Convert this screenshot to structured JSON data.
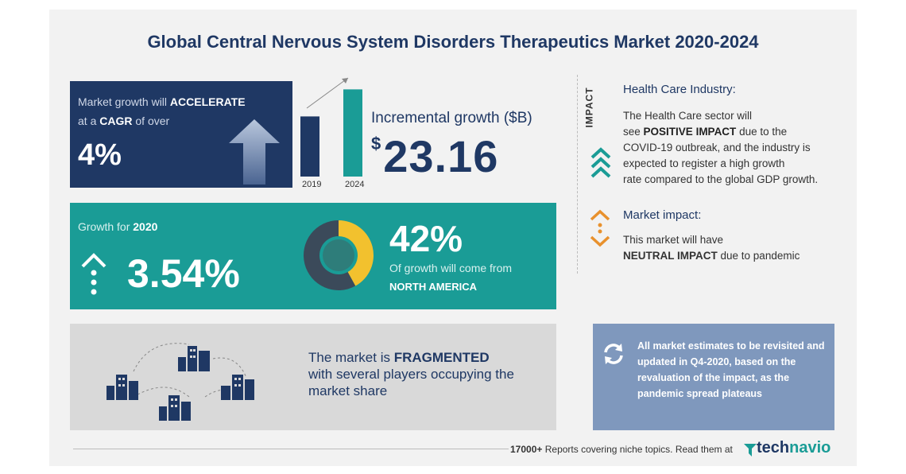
{
  "title": "Global Central Nervous System Disorders Therapeutics Market 2020-2024",
  "growth_panel": {
    "line1_prefix": "Market growth will",
    "line1_bold": "ACCELERATE",
    "line2_prefix": "at a",
    "line2_bold": "CAGR",
    "line2_suffix": "of over",
    "cagr": "4%"
  },
  "bars": {
    "labels": [
      "2019",
      "2024"
    ],
    "relative_heights": [
      0.6,
      0.87
    ]
  },
  "incremental": {
    "label": "Incremental growth ($B)",
    "currency": "$",
    "value": "23.16"
  },
  "teal_panel": {
    "growth_label_prefix": "Growth for",
    "growth_label_year": "2020",
    "growth_value": "3.54%",
    "region_pct": "42%",
    "region_text": "Of growth will come from",
    "region_name": "NORTH AMERICA",
    "region_fraction": 0.42
  },
  "fragment_panel": {
    "line1_prefix": "The market is",
    "line1_bold": "FRAGMENTED",
    "line2": "with several players occupying the",
    "line3": "market share"
  },
  "impact": {
    "vertical_label": "IMPACT",
    "health_title": "Health Care Industry:",
    "health_l1": "The Health Care sector will",
    "health_l2_prefix": "see",
    "health_l2_bold": "POSITIVE IMPACT",
    "health_l2_suffix": "due to the",
    "health_l3": "COVID-19 outbreak, and the industry is",
    "health_l4": "expected to register a high growth",
    "health_l5": "rate compared to the global GDP growth.",
    "market_title": "Market impact:",
    "market_l1": "This market will have",
    "market_l2_bold": "NEUTRAL IMPACT",
    "market_l2_suffix": "due to pandemic"
  },
  "note": {
    "text": "All market estimates to be revisited and updated in Q4-2020, based on the revaluation of the impact, as the pandemic spread plateaus"
  },
  "footer": {
    "count": "17000+",
    "text": "Reports covering niche topics. Read them at",
    "brand_a": "tech",
    "brand_b": "navio"
  },
  "colors": {
    "navy": "#1f3864",
    "teal": "#1a9c96",
    "grey": "#d9d9d9",
    "note": "#7f98bd",
    "donut_yellow": "#f2c12e",
    "donut_dark": "#3b4a5a",
    "orange": "#e8912d"
  }
}
